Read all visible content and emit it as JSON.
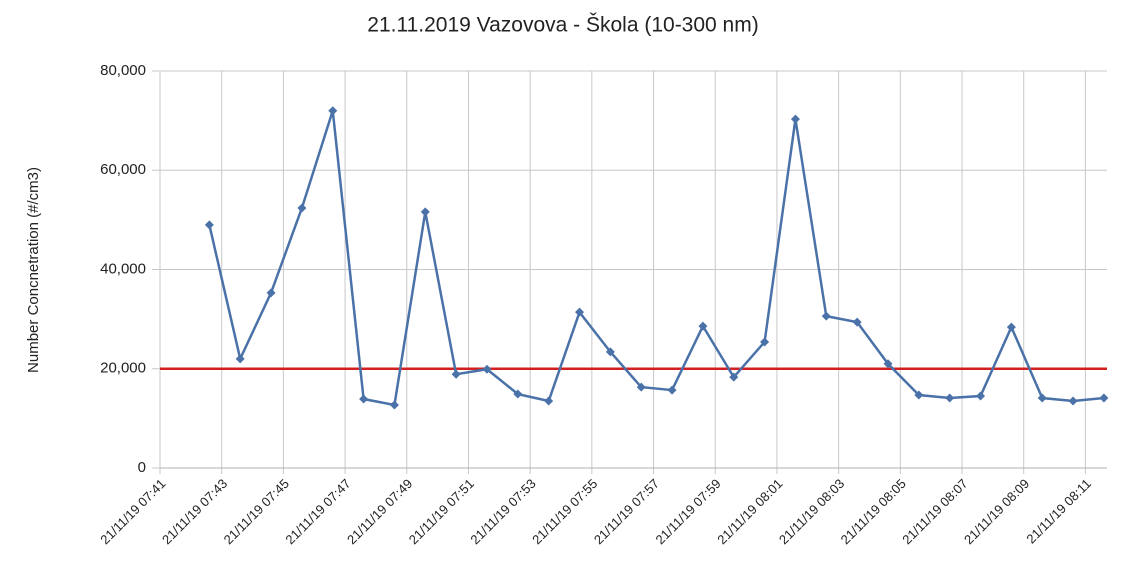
{
  "chart_data": {
    "type": "line",
    "title": "21.11.2019 Vazovova - Škola (10-300 nm)",
    "ylabel": "Number Concnetration (#/cm3)",
    "x": [
      462.6,
      463.6,
      464.6,
      465.6,
      466.6,
      467.6,
      468.6,
      469.6,
      470.6,
      471.6,
      472.6,
      473.6,
      474.6,
      475.6,
      476.6,
      477.6,
      478.6,
      479.6,
      480.6,
      481.6,
      482.6,
      483.6,
      484.6,
      485.6,
      486.6,
      487.6,
      488.6,
      489.6,
      490.6,
      491.6
    ],
    "series": [
      {
        "name": "Number Concentration",
        "color": "#4a72a8",
        "values": [
          49000,
          22000,
          35300,
          52400,
          72000,
          13900,
          12700,
          51600,
          18900,
          19900,
          14900,
          13500,
          31400,
          23400,
          16300,
          15700,
          28600,
          18300,
          25400,
          70300,
          30600,
          29400,
          21000,
          14700,
          14100,
          14500,
          28400,
          14100,
          13500,
          14100
        ]
      }
    ],
    "threshold": {
      "value": 20000,
      "color": "#d02020"
    },
    "xlim": [
      461,
      491.7
    ],
    "xticks": [
      {
        "value": 461,
        "label": "21/11/19 07:41"
      },
      {
        "value": 463,
        "label": "21/11/19 07:43"
      },
      {
        "value": 465,
        "label": "21/11/19 07:45"
      },
      {
        "value": 467,
        "label": "21/11/19 07:47"
      },
      {
        "value": 469,
        "label": "21/11/19 07:49"
      },
      {
        "value": 471,
        "label": "21/11/19 07:51"
      },
      {
        "value": 473,
        "label": "21/11/19 07:53"
      },
      {
        "value": 475,
        "label": "21/11/19 07:55"
      },
      {
        "value": 477,
        "label": "21/11/19 07:57"
      },
      {
        "value": 479,
        "label": "21/11/19 07:59"
      },
      {
        "value": 481,
        "label": "21/11/19 08:01"
      },
      {
        "value": 483,
        "label": "21/11/19 08:03"
      },
      {
        "value": 485,
        "label": "21/11/19 08:05"
      },
      {
        "value": 487,
        "label": "21/11/19 08:07"
      },
      {
        "value": 489,
        "label": "21/11/19 08:09"
      },
      {
        "value": 491,
        "label": "21/11/19 08:11"
      }
    ],
    "ylim": [
      0,
      80000
    ],
    "yticks": [
      0,
      {
        "value": 20000,
        "label": "20,000"
      },
      {
        "value": 40000,
        "label": "40,000"
      },
      {
        "value": 60000,
        "label": "60,000"
      },
      {
        "value": 80000,
        "label": "80,000"
      }
    ],
    "grid": true
  }
}
